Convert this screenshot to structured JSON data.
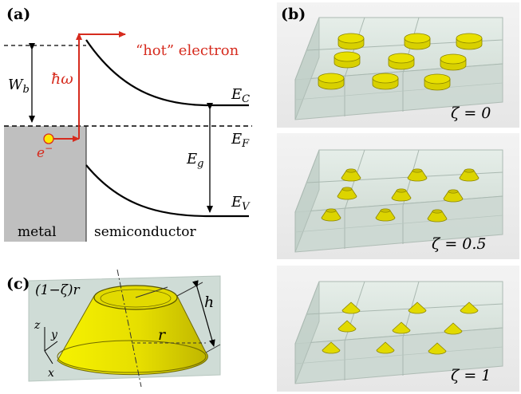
{
  "panels": {
    "a": {
      "label": "(a)",
      "hot_electron": "“hot” electron",
      "hbar_omega": "ħω",
      "W_b": "W",
      "W_b_sub": "b",
      "electron": "e",
      "electron_sup": "−",
      "E_C": "E",
      "E_C_sub": "C",
      "E_F": "E",
      "E_F_sub": "F",
      "E_g": "E",
      "E_g_sub": "g",
      "E_V": "E",
      "E_V_sub": "V",
      "metal": "metal",
      "semiconductor": "semiconductor"
    },
    "b": {
      "label": "(b)",
      "zeta_labels": [
        "ζ = 0",
        "ζ = 0.5",
        "ζ = 1"
      ]
    },
    "c": {
      "label": "(c)",
      "top_radius": "(1−ζ)r",
      "height": "h",
      "radius": "r",
      "axis_z": "z",
      "axis_y": "y",
      "axis_x": "x"
    }
  },
  "colors": {
    "red": "#d62b1e",
    "gold": "#e8e000",
    "gold_dark": "#8a8400",
    "metal_gray": "#bfbfbf",
    "box_fill": "#dde8e2"
  }
}
